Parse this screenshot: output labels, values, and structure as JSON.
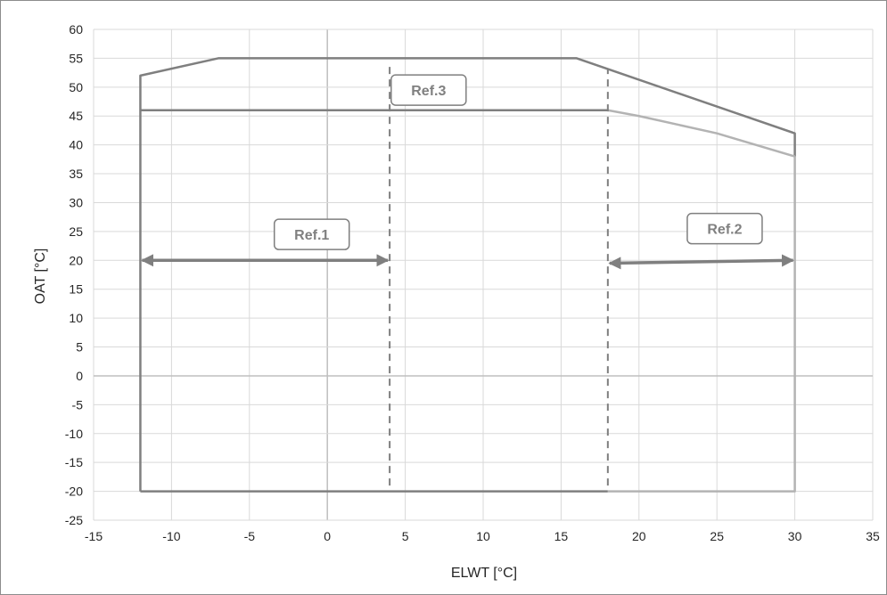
{
  "chart_data": {
    "type": "line",
    "xlabel": "ELWT [°C]",
    "ylabel": "OAT [°C]",
    "xlim": [
      -15,
      35
    ],
    "ylim": [
      -25,
      60
    ],
    "xticks": [
      -15,
      -10,
      -5,
      0,
      5,
      10,
      15,
      20,
      25,
      30,
      35
    ],
    "yticks": [
      -25,
      -20,
      -15,
      -10,
      -5,
      0,
      5,
      10,
      15,
      20,
      25,
      30,
      35,
      40,
      45,
      50,
      55,
      60
    ],
    "grid": true,
    "colors": {
      "envelope": "#7f7f7f",
      "inner": "#7f7f7f",
      "light": "#b3b3b3",
      "grid": "#d9d9d9",
      "zero_axis": "#bfbfbf",
      "arrow": "#7f7f7f"
    },
    "series": [
      {
        "role": "outer-envelope",
        "x": [
          -12,
          -12,
          -7,
          16,
          30,
          30
        ],
        "y": [
          -20,
          52,
          55,
          55,
          42,
          38
        ]
      },
      {
        "role": "inner-limit",
        "x": [
          -12,
          18
        ],
        "y": [
          46,
          46
        ]
      },
      {
        "role": "inner-limit-extension",
        "x": [
          18,
          20,
          25,
          30
        ],
        "y": [
          46,
          45,
          42,
          38
        ]
      },
      {
        "role": "bottom-limit-left",
        "x": [
          -12,
          18
        ],
        "y": [
          -20,
          -20
        ]
      },
      {
        "role": "bottom-limit-right",
        "x": [
          18,
          30,
          30
        ],
        "y": [
          -20,
          -20,
          38
        ]
      }
    ],
    "dashed_lines": [
      {
        "x": 4,
        "y_range": [
          -19,
          54
        ]
      },
      {
        "x": 18,
        "y_range": [
          -19,
          53
        ]
      }
    ],
    "arrows": [
      {
        "x_range": [
          -12,
          4
        ],
        "y": 20
      },
      {
        "x_range": [
          18,
          30
        ],
        "y_range": [
          19.5,
          20
        ]
      }
    ],
    "annotations": [
      {
        "text": "Ref.1",
        "x": -1,
        "y": 24.5
      },
      {
        "text": "Ref.2",
        "x": 25.5,
        "y": 25.5
      },
      {
        "text": "Ref.3",
        "x": 6.5,
        "y": 49.5
      }
    ]
  }
}
